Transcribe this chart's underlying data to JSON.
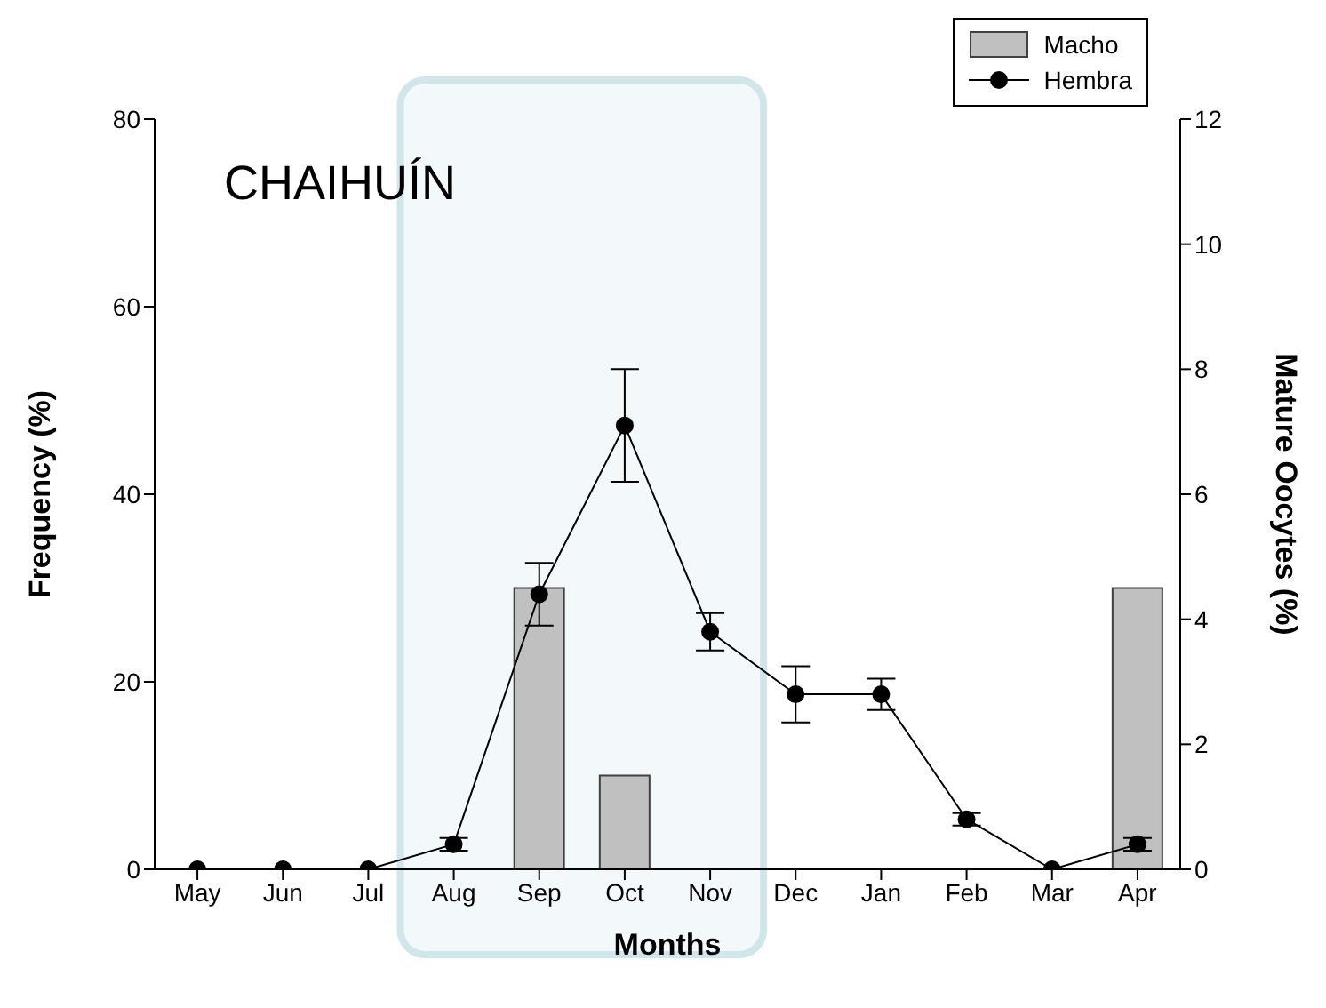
{
  "chart_data": {
    "type": "bar",
    "xlabel": "Months",
    "ylabel": "Frequency (%)",
    "y2label": "Mature Oocytes (%)",
    "annotations": [
      "CHAIHUÍN"
    ],
    "categories": [
      "May",
      "Jun",
      "Jul",
      "Aug",
      "Sep",
      "Oct",
      "Nov",
      "Dec",
      "Jan",
      "Feb",
      "Mar",
      "Apr"
    ],
    "series": [
      {
        "name": "Macho",
        "color": "#c0c0c0",
        "values": [
          0,
          0,
          0,
          0,
          30,
          10,
          0,
          0,
          0,
          0,
          0,
          30
        ]
      },
      {
        "name": "Hembra",
        "type": "line",
        "axis": "y2",
        "color": "#000000",
        "values": [
          0,
          0,
          0,
          0.4,
          4.4,
          7.1,
          3.8,
          2.8,
          2.8,
          0.8,
          0,
          0.4
        ],
        "errors": [
          null,
          null,
          null,
          0.1,
          0.5,
          0.9,
          0.3,
          0.45,
          0.25,
          0.1,
          null,
          0.1
        ]
      }
    ],
    "ylim": [
      0,
      80
    ],
    "yticks": [
      0,
      20,
      40,
      60,
      80
    ],
    "y2lim": [
      0,
      12
    ],
    "y2ticks": [
      0,
      2,
      4,
      6,
      8,
      10,
      12
    ],
    "legend": "top right",
    "marker": "circle"
  }
}
